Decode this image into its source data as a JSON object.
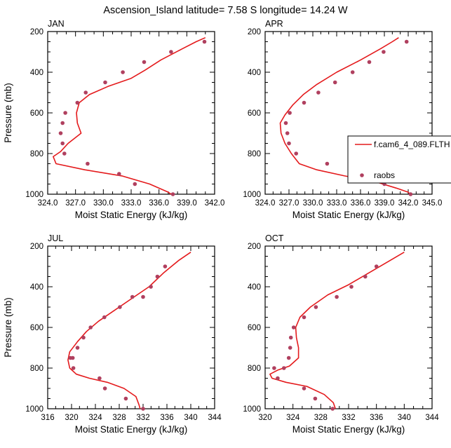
{
  "title": "Ascension_Island  latitude= 7.58 S longitude= 14.24 W",
  "colors": {
    "model": "#e41a1c",
    "obs": "#b0405f",
    "axis": "#000000"
  },
  "legend": {
    "placement": "right, between top-right and bottom-right panels",
    "entries": [
      {
        "label": "f.cam6_4_089.FLTH",
        "style": "line"
      },
      {
        "label": "raobs",
        "style": "marker"
      }
    ]
  },
  "chart_data": [
    {
      "type": "line",
      "panel": "JAN",
      "xlabel": "Moist Static Energy (kJ/kg)",
      "ylabel": "Pressure (mb)",
      "xlim": [
        324.0,
        342.0
      ],
      "ylim": [
        1000,
        200
      ],
      "xticks": [
        "324.0",
        "327.0",
        "330.0",
        "333.0",
        "336.0",
        "339.0",
        "342.0"
      ],
      "xtick_values": [
        324,
        327,
        330,
        333,
        336,
        339,
        342
      ],
      "yticks": [
        "200",
        "400",
        "600",
        "800",
        "1000"
      ],
      "ytick_values": [
        200,
        400,
        600,
        800,
        1000
      ],
      "series": [
        {
          "name": "f.cam6_4_089.FLTH",
          "style": "line",
          "x": [
            341.0,
            340.0,
            338.5,
            336.2,
            334.5,
            333.0,
            330.5,
            328.5,
            327.4,
            327.1,
            327.2,
            327.6,
            326.2,
            325.4,
            324.6,
            324.9,
            328.0,
            332.0,
            335.0,
            337.0,
            337.3
          ],
          "y": [
            230,
            250,
            285,
            340,
            390,
            430,
            470,
            510,
            550,
            600,
            650,
            700,
            750,
            790,
            815,
            850,
            880,
            910,
            950,
            990,
            1000
          ]
        },
        {
          "name": "raobs",
          "style": "marker",
          "x": [
            340.9,
            337.3,
            334.4,
            332.1,
            330.2,
            328.1,
            327.2,
            325.9,
            325.6,
            325.4,
            325.6,
            325.8,
            328.3,
            331.7,
            333.4,
            337.5
          ],
          "y": [
            250,
            300,
            350,
            400,
            450,
            500,
            550,
            600,
            650,
            700,
            750,
            800,
            850,
            900,
            950,
            1000
          ]
        }
      ]
    },
    {
      "type": "line",
      "panel": "APR",
      "xlabel": "Moist Static Energy (kJ/kg)",
      "ylabel": "",
      "xlim": [
        324.0,
        345.0
      ],
      "ylim": [
        1000,
        200
      ],
      "xticks": [
        "324.0",
        "327.0",
        "330.0",
        "333.0",
        "336.0",
        "339.0",
        "342.0",
        "345.0"
      ],
      "xtick_values": [
        324,
        327,
        330,
        333,
        336,
        339,
        342,
        345
      ],
      "yticks": [
        "200",
        "400",
        "600",
        "800",
        "1000"
      ],
      "ytick_values": [
        200,
        400,
        600,
        800,
        1000
      ],
      "series": [
        {
          "name": "f.cam6_4_089.FLTH",
          "style": "line",
          "x": [
            340.8,
            340.0,
            338.5,
            336.0,
            333.0,
            330.5,
            328.8,
            327.5,
            326.5,
            325.9,
            326.0,
            326.5,
            327.3,
            328.3,
            330.5,
            334.0,
            338.0,
            340.5,
            342.0,
            342.2
          ],
          "y": [
            230,
            250,
            285,
            340,
            400,
            460,
            510,
            560,
            610,
            650,
            700,
            750,
            800,
            850,
            880,
            910,
            940,
            970,
            990,
            1000
          ]
        },
        {
          "name": "raobs",
          "style": "marker",
          "x": [
            341.8,
            338.9,
            337.1,
            335.0,
            332.8,
            330.7,
            328.9,
            327.1,
            326.6,
            326.8,
            327.0,
            327.9,
            331.8,
            336.1,
            339.0,
            342.3
          ],
          "y": [
            250,
            300,
            350,
            400,
            450,
            500,
            550,
            600,
            650,
            700,
            750,
            800,
            850,
            900,
            950,
            1000
          ]
        }
      ]
    },
    {
      "type": "line",
      "panel": "JUL",
      "xlabel": "Moist Static Energy (kJ/kg)",
      "ylabel": "Pressure (mb)",
      "xlim": [
        316,
        344
      ],
      "ylim": [
        1000,
        200
      ],
      "xticks": [
        "316",
        "320",
        "324",
        "328",
        "332",
        "336",
        "340",
        "344"
      ],
      "xtick_values": [
        316,
        320,
        324,
        328,
        332,
        336,
        340,
        344
      ],
      "yticks": [
        "200",
        "400",
        "600",
        "800",
        "1000"
      ],
      "ytick_values": [
        200,
        400,
        600,
        800,
        1000
      ],
      "series": [
        {
          "name": "f.cam6_4_089.FLTH",
          "style": "line",
          "x": [
            340.0,
            338.0,
            335.5,
            333.0,
            330.0,
            327.0,
            324.5,
            322.5,
            321.0,
            319.7,
            319.4,
            319.7,
            320.8,
            323.0,
            326.0,
            328.8,
            330.8,
            331.3,
            331.5
          ],
          "y": [
            230,
            270,
            330,
            400,
            460,
            520,
            570,
            620,
            670,
            720,
            760,
            800,
            830,
            850,
            870,
            900,
            940,
            980,
            1000
          ]
        },
        {
          "name": "raobs",
          "style": "marker",
          "x": [
            335.7,
            334.4,
            333.3,
            332.0,
            330.2,
            328.1,
            325.5,
            323.2,
            322.0,
            321.0,
            320.2,
            319.8,
            320.3,
            324.7,
            325.6,
            329.1,
            332.0
          ],
          "y": [
            300,
            350,
            400,
            450,
            450,
            500,
            550,
            600,
            650,
            700,
            750,
            750,
            800,
            850,
            900,
            950,
            1000
          ]
        }
      ]
    },
    {
      "type": "line",
      "panel": "OCT",
      "xlabel": "Moist Static Energy (kJ/kg)",
      "ylabel": "",
      "xlim": [
        320,
        344
      ],
      "ylim": [
        1000,
        200
      ],
      "xticks": [
        "320",
        "324",
        "328",
        "332",
        "336",
        "340",
        "344"
      ],
      "xtick_values": [
        320,
        324,
        328,
        332,
        336,
        340,
        344
      ],
      "yticks": [
        "200",
        "400",
        "600",
        "800",
        "1000"
      ],
      "ytick_values": [
        200,
        400,
        600,
        800,
        1000
      ],
      "series": [
        {
          "name": "f.cam6_4_089.FLTH",
          "style": "line",
          "x": [
            340.0,
            338.0,
            335.0,
            332.0,
            329.0,
            326.5,
            325.0,
            324.4,
            324.5,
            324.8,
            324.8,
            323.5,
            321.8,
            320.7,
            321.0,
            323.0,
            326.0,
            328.5,
            329.8,
            330.1
          ],
          "y": [
            230,
            270,
            330,
            390,
            440,
            500,
            550,
            600,
            650,
            700,
            750,
            790,
            810,
            830,
            850,
            870,
            890,
            930,
            970,
            1000
          ]
        },
        {
          "name": "raobs",
          "style": "marker",
          "x": [
            336.0,
            334.4,
            332.4,
            330.3,
            327.3,
            325.6,
            324.1,
            323.7,
            323.6,
            323.4,
            322.7,
            321.3,
            321.8,
            325.6,
            327.2,
            329.7
          ],
          "y": [
            300,
            350,
            400,
            450,
            500,
            550,
            600,
            650,
            700,
            750,
            800,
            800,
            850,
            900,
            950,
            1000
          ]
        }
      ]
    }
  ]
}
